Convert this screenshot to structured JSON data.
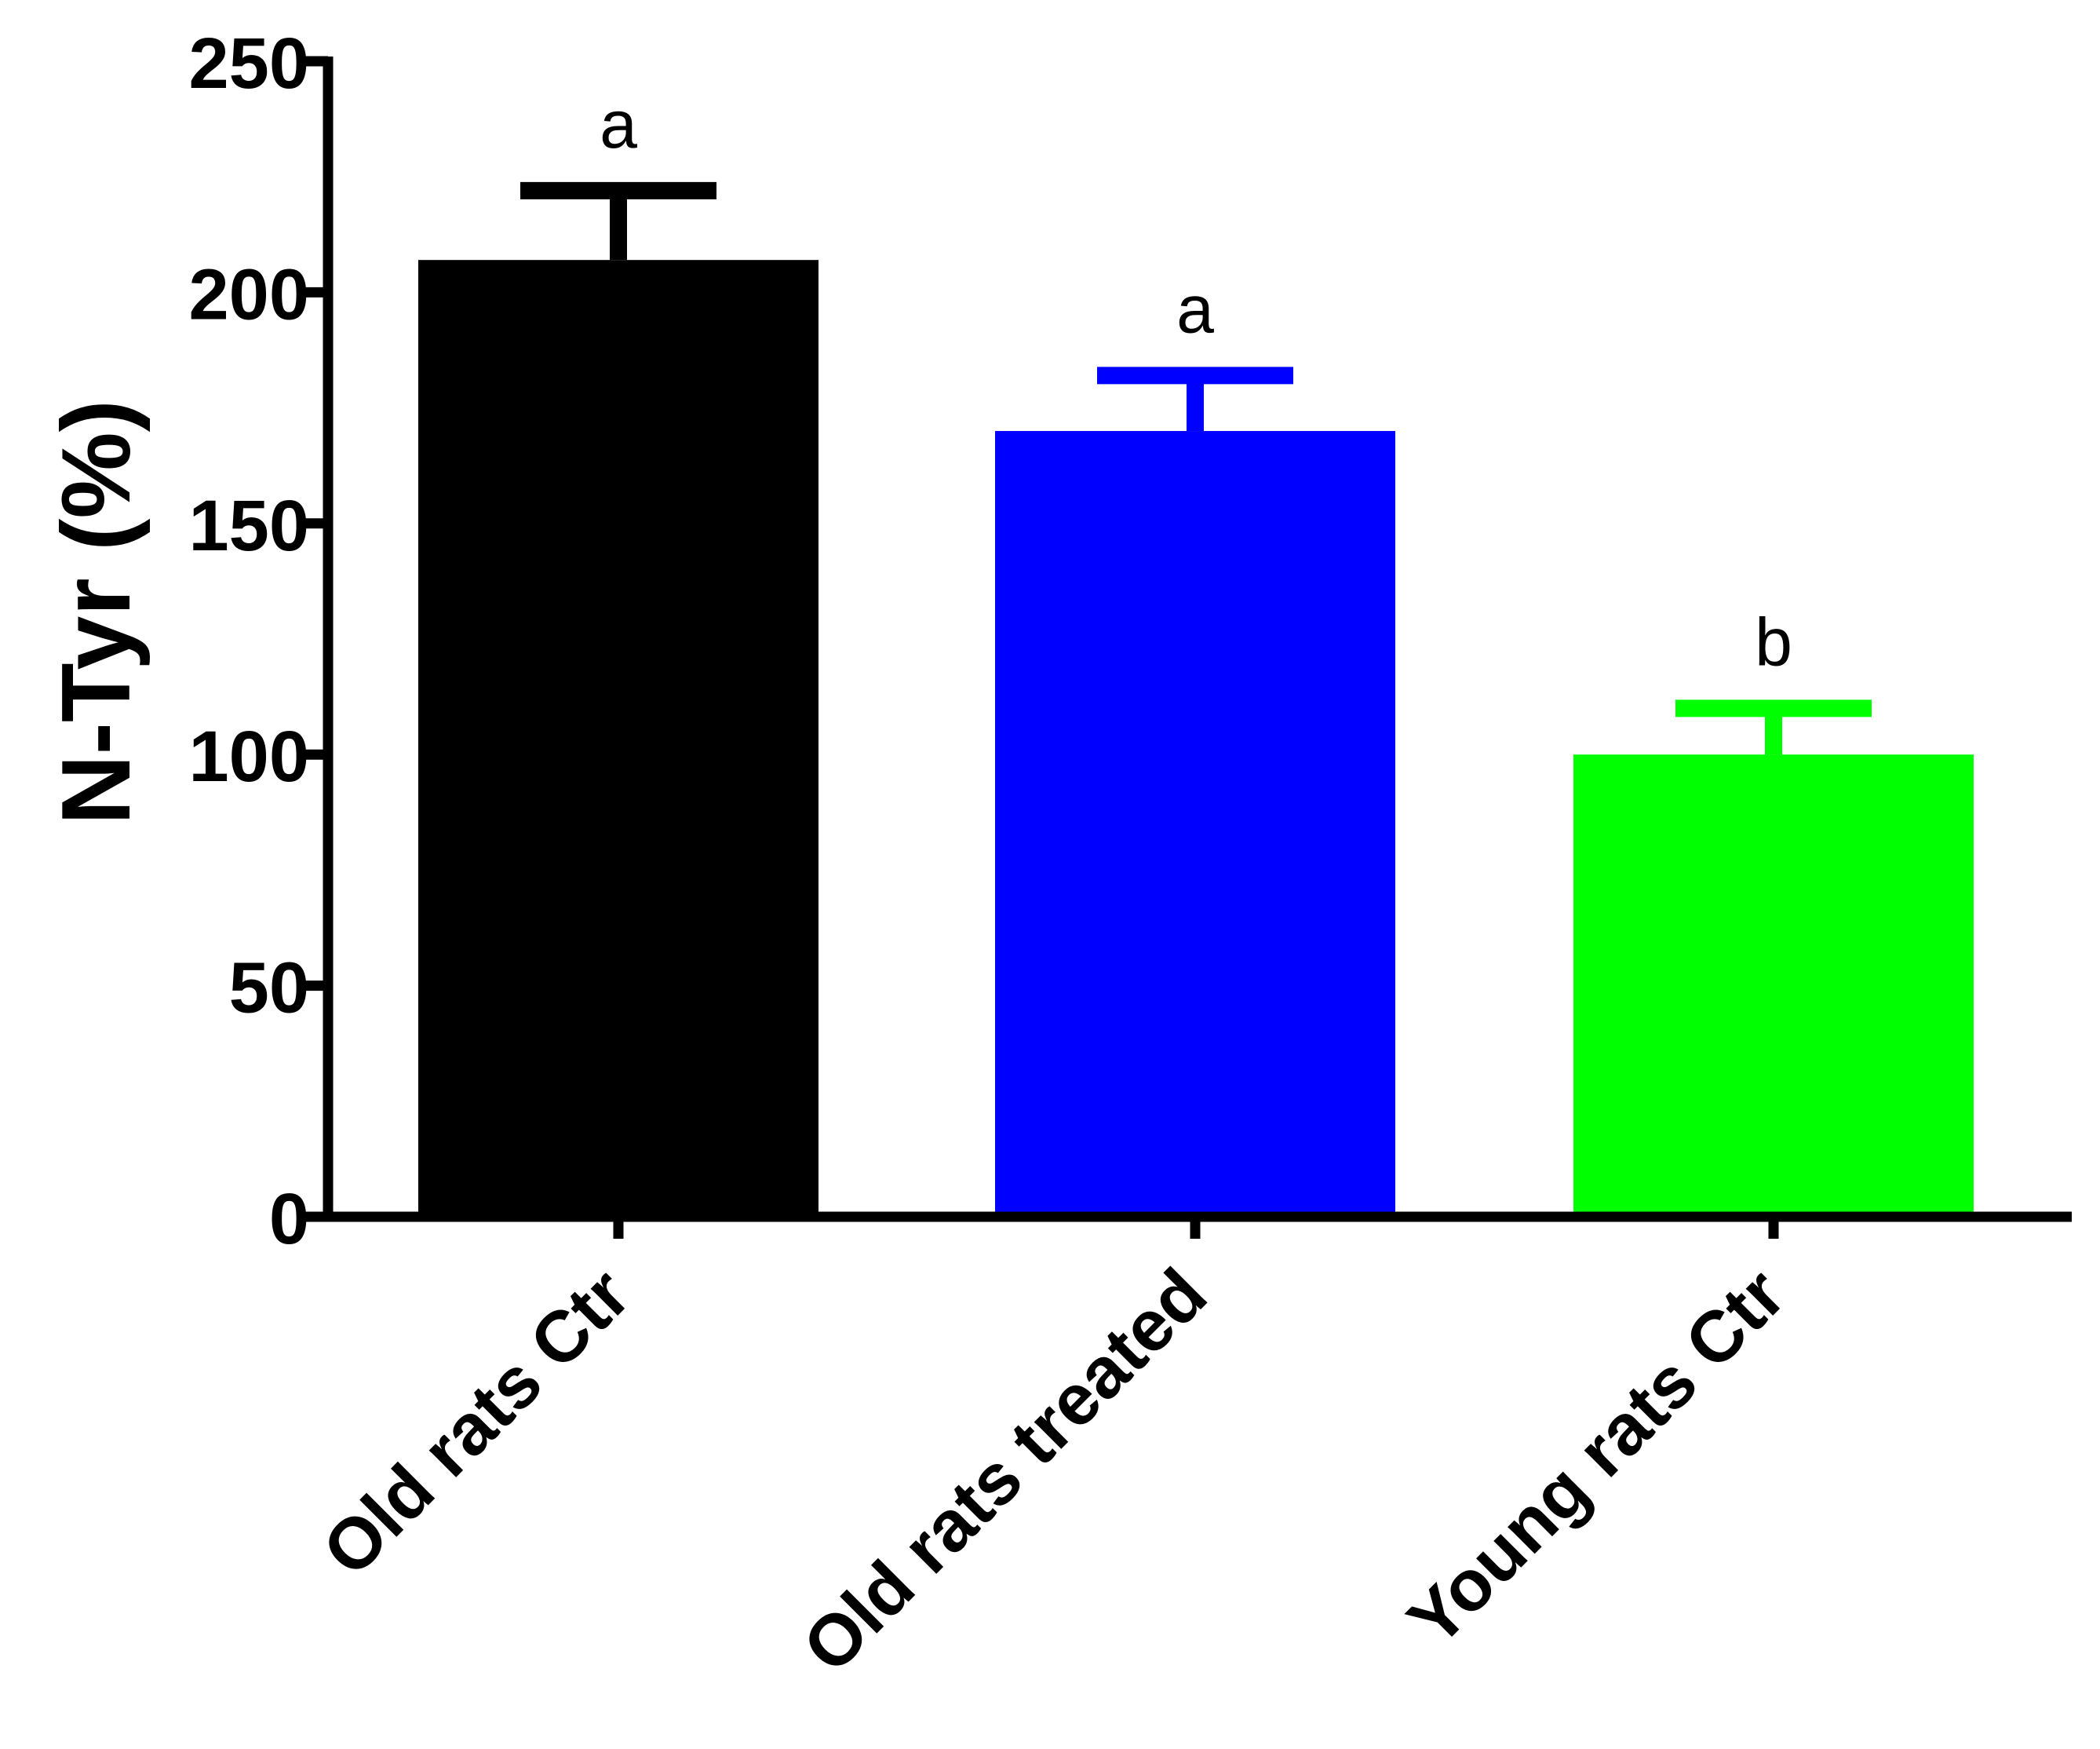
{
  "chart_data": {
    "type": "bar",
    "title": "",
    "xlabel": "",
    "ylabel": "N-Tyr (%)",
    "ylim": [
      0,
      250
    ],
    "yticks": [
      0,
      50,
      100,
      150,
      200,
      250
    ],
    "ytick_labels": [
      "0",
      "50",
      "100",
      "150",
      "200",
      "250"
    ],
    "categories": [
      "Old rats Ctr",
      "Old rats treated",
      "Young rats Ctr"
    ],
    "values": [
      207,
      170,
      100
    ],
    "errors": [
      15,
      12,
      10
    ],
    "significance_labels": [
      "a",
      "a",
      "b"
    ],
    "colors": [
      "#000000",
      "#0000ff",
      "#00ff00"
    ]
  }
}
